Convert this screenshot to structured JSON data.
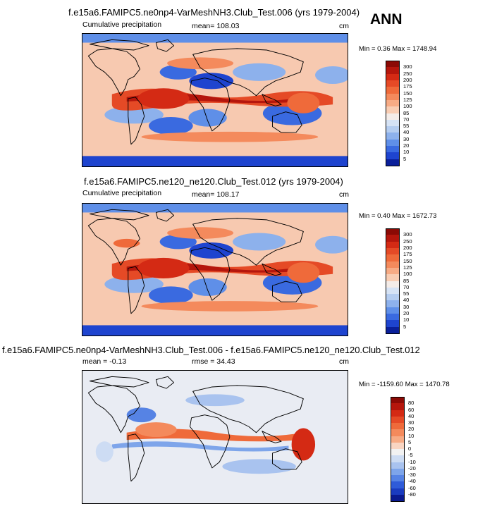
{
  "season_label": "ANN",
  "panels": [
    {
      "title": "f.e15a6.FAMIPC5.ne0np4-VarMeshNH3.Club_Test.006 (yrs 1979-2004)",
      "left_label": "Cumulative precipitation",
      "center_label": "mean= 108.03",
      "units": "cm",
      "minmax": "Min =   0.36 Max = 1748.94"
    },
    {
      "title": "f.e15a6.FAMIPC5.ne120_ne120.Club_Test.012 (yrs 1979-2004)",
      "left_label": "Cumulative precipitation",
      "center_label": "mean= 108.17",
      "units": "cm",
      "minmax": "Min =   0.40 Max = 1672.73"
    },
    {
      "title": "f.e15a6.FAMIPC5.ne0np4-VarMeshNH3.Club_Test.006 - f.e15a6.FAMIPC5.ne120_ne120.Club_Test.012",
      "left_label": "mean =  -0.13",
      "center_label": "rmse =  34.43",
      "units": "cm",
      "minmax": "Min = -1159.60 Max = 1470.78"
    }
  ],
  "chart_data": [
    {
      "type": "heatmap",
      "title": "f.e15a6.FAMIPC5.ne0np4-VarMeshNH3.Club_Test.006 (yrs 1979-2004)",
      "variable": "Cumulative precipitation",
      "units": "cm",
      "mean": 108.03,
      "min": 0.36,
      "max": 1748.94,
      "colorbar_levels": [
        300,
        250,
        200,
        175,
        150,
        125,
        100,
        85,
        70,
        55,
        40,
        30,
        20,
        10,
        5
      ],
      "colorbar_colors": [
        "#8b0a05",
        "#b5160c",
        "#d42a14",
        "#e54a26",
        "#ef6a3a",
        "#f48a5c",
        "#f7ab85",
        "#f9cdb3",
        "#f4ece8",
        "#d6e3f5",
        "#b5cdf0",
        "#8db1ec",
        "#5f8fe8",
        "#3a6ae0",
        "#1e44cf",
        "#0a1f9a"
      ]
    },
    {
      "type": "heatmap",
      "title": "f.e15a6.FAMIPC5.ne120_ne120.Club_Test.012 (yrs 1979-2004)",
      "variable": "Cumulative precipitation",
      "units": "cm",
      "mean": 108.17,
      "min": 0.4,
      "max": 1672.73,
      "colorbar_levels": [
        300,
        250,
        200,
        175,
        150,
        125,
        100,
        85,
        70,
        55,
        40,
        30,
        20,
        10,
        5
      ],
      "colorbar_colors": [
        "#8b0a05",
        "#b5160c",
        "#d42a14",
        "#e54a26",
        "#ef6a3a",
        "#f48a5c",
        "#f7ab85",
        "#f9cdb3",
        "#f4ece8",
        "#d6e3f5",
        "#b5cdf0",
        "#8db1ec",
        "#5f8fe8",
        "#3a6ae0",
        "#1e44cf",
        "#0a1f9a"
      ]
    },
    {
      "type": "heatmap",
      "title": "f.e15a6.FAMIPC5.ne0np4-VarMeshNH3.Club_Test.006 - f.e15a6.FAMIPC5.ne120_ne120.Club_Test.012",
      "units": "cm",
      "mean": -0.13,
      "rmse": 34.43,
      "min": -1159.6,
      "max": 1470.78,
      "colorbar_levels": [
        80,
        60,
        40,
        30,
        20,
        10,
        5,
        0,
        -5,
        -10,
        -20,
        -30,
        -40,
        -60,
        -80
      ],
      "colorbar_colors": [
        "#8b0a05",
        "#b5160c",
        "#d42a14",
        "#e54a26",
        "#ef6a3a",
        "#f48a5c",
        "#f7ab85",
        "#f9d5c2",
        "#f2f2f2",
        "#cddcf3",
        "#a9c3ef",
        "#7ea5ea",
        "#5683e4",
        "#2f5bd8",
        "#1a3bbf",
        "#0a1a8f"
      ]
    }
  ]
}
